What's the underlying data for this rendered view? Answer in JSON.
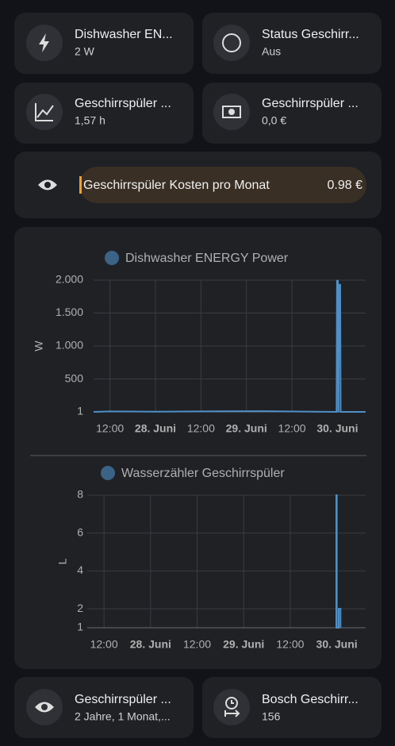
{
  "tiles": [
    {
      "name": "Dishwasher EN...",
      "state": "2 W"
    },
    {
      "name": "Status Geschirr...",
      "state": "Aus"
    },
    {
      "name": "Geschirrspüler ...",
      "state": "1,57 h"
    },
    {
      "name": "Geschirrspüler ...",
      "state": "0,0 €"
    }
  ],
  "bar": {
    "name": "Geschirrspüler Kosten pro Monat",
    "value": "0.98 €"
  },
  "chart_data": [
    {
      "type": "line",
      "title": "Dishwasher ENERGY Power",
      "y_label": "W",
      "color": "#4f8fc6",
      "grid": true,
      "xlim": [
        27.32,
        30.31
      ],
      "xticks": [
        {
          "value": 27.5,
          "label": "12:00"
        },
        {
          "value": 28,
          "label": "28. Juni"
        },
        {
          "value": 28.5,
          "label": "12:00"
        },
        {
          "value": 29,
          "label": "29. Juni"
        },
        {
          "value": 29.5,
          "label": "12:00"
        },
        {
          "value": 30,
          "label": "30. Juni"
        }
      ],
      "ylim": [
        1,
        2000
      ],
      "yticks": [
        1,
        500,
        {
          "value": 1000,
          "label": "1.000"
        },
        {
          "value": 1500,
          "label": "1.500"
        },
        {
          "value": 2000,
          "label": "2.000"
        }
      ],
      "series": [
        {
          "name": "Dishwasher ENERGY Power",
          "color": "#4f8fc6",
          "x": [
            27.32,
            27.5,
            28.0,
            28.7,
            29.2,
            29.99,
            29.995,
            30.005,
            30.01,
            30.012,
            30.018,
            30.03,
            30.035,
            30.31
          ],
          "values": [
            1,
            8,
            5,
            10,
            12,
            1,
            1990,
            1990,
            5,
            5,
            1930,
            1930,
            1,
            1
          ]
        }
      ]
    },
    {
      "type": "line",
      "title": "Wasserzähler Geschirrspüler",
      "y_label": "L",
      "color": "#4f8fc6",
      "grid": true,
      "xlim": [
        27.32,
        30.31
      ],
      "xticks": [
        {
          "value": 27.5,
          "label": "12:00"
        },
        {
          "value": 28,
          "label": "28. Juni"
        },
        {
          "value": 28.5,
          "label": "12:00"
        },
        {
          "value": 29,
          "label": "29. Juni"
        },
        {
          "value": 29.5,
          "label": "12:00"
        },
        {
          "value": 30,
          "label": "30. Juni"
        }
      ],
      "ylim": [
        1,
        8
      ],
      "yticks": [
        1,
        2,
        4,
        6,
        8
      ],
      "series": [
        {
          "name": "Wasserzähler Geschirrspüler",
          "color": "#4f8fc6",
          "x": [
            29.995,
            29.995,
            30.0,
            30.0,
            30.02,
            30.02,
            30.04,
            30.04
          ],
          "values": [
            1,
            8,
            8,
            1,
            1,
            2,
            2,
            1
          ]
        }
      ]
    }
  ],
  "bottom_tiles": [
    {
      "name": "Geschirrspüler ...",
      "state": "2 Jahre, 1 Monat,..."
    },
    {
      "name": "Bosch Geschirr...",
      "state": "156"
    }
  ]
}
